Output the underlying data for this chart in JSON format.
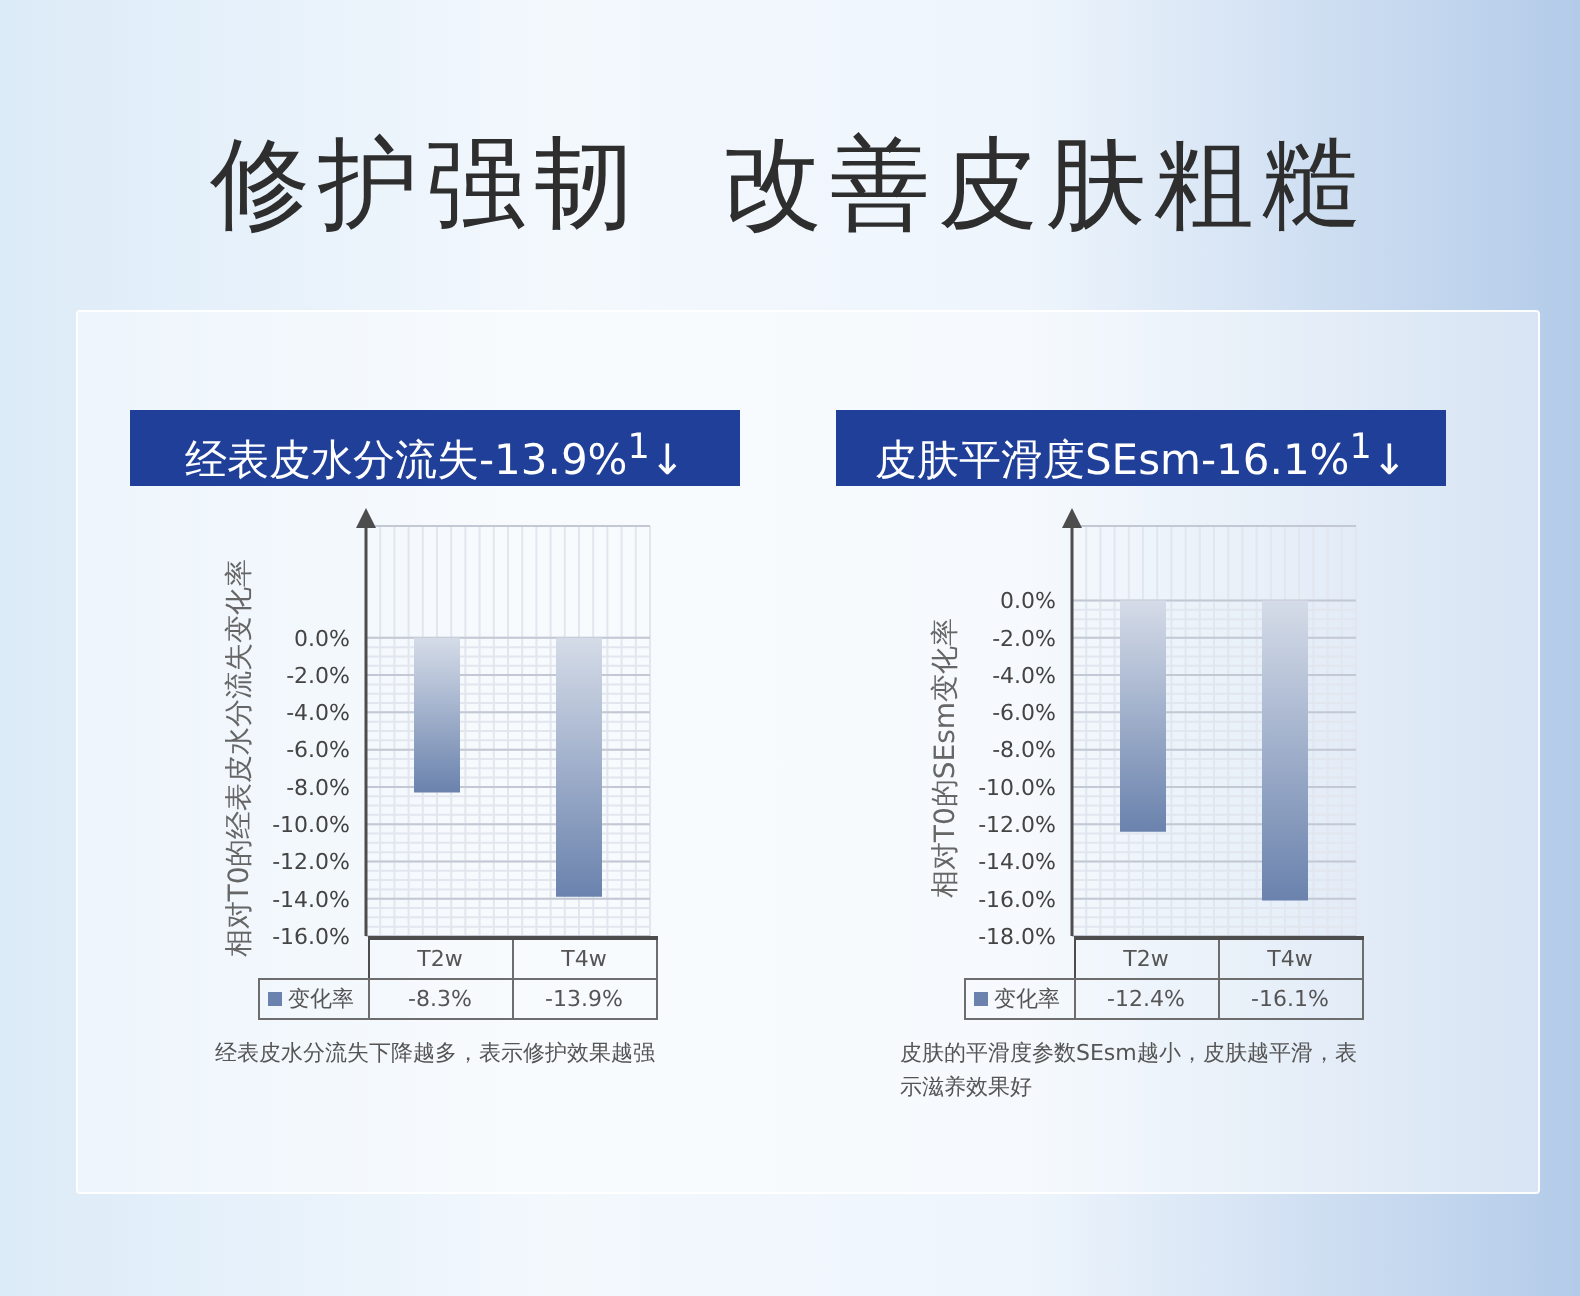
{
  "chart_data": [
    {
      "type": "other",
      "title": "修护强韧  改善皮肤粗糙"
    },
    {
      "type": "bar",
      "title": "经表皮水分流失-13.9%$^{1}$↓",
      "ylabel": "相对T0的经表皮水分流失变化率",
      "categories": [
        "T2w",
        "T4w"
      ],
      "series": [
        {
          "name": "变化率",
          "color": "#6a82ad",
          "values": [
            -8.3,
            -13.9
          ],
          "value_labels": [
            "-8.3%",
            "-13.9%"
          ]
        }
      ],
      "ylim": [
        -16,
        6
      ],
      "yticks": [
        {
          "value": 0,
          "label": "0.0%"
        },
        {
          "value": -2,
          "label": "-2.0%"
        },
        {
          "value": -4,
          "label": "-4.0%"
        },
        {
          "value": -6,
          "label": "-6.0%"
        },
        {
          "value": -8,
          "label": "-8.0%"
        },
        {
          "value": -10,
          "label": "-10.0%"
        },
        {
          "value": -12,
          "label": "-12.0%"
        },
        {
          "value": -14,
          "label": "-14.0%"
        },
        {
          "value": -16,
          "label": "-16.0%"
        }
      ],
      "grid": true,
      "legend": "bottom",
      "annotations": [
        "经表皮水分流失下降越多，表示修护效果越强"
      ]
    },
    {
      "type": "bar",
      "title": "皮肤平滑度SEsm-16.1%$^{1}$↓",
      "ylabel": "相对T0的SEsm变化率",
      "categories": [
        "T2w",
        "T4w"
      ],
      "series": [
        {
          "name": "变化率",
          "color": "#6a82ad",
          "values": [
            -12.4,
            -16.1
          ],
          "value_labels": [
            "-12.4%",
            "-16.1%"
          ]
        }
      ],
      "ylim": [
        -18,
        4
      ],
      "yticks": [
        {
          "value": 0,
          "label": "0.0%"
        },
        {
          "value": -2,
          "label": "-2.0%"
        },
        {
          "value": -4,
          "label": "-4.0%"
        },
        {
          "value": -6,
          "label": "-6.0%"
        },
        {
          "value": -8,
          "label": "-8.0%"
        },
        {
          "value": -10,
          "label": "-10.0%"
        },
        {
          "value": -12,
          "label": "-12.0%"
        },
        {
          "value": -14,
          "label": "-14.0%"
        },
        {
          "value": -16,
          "label": "-16.0%"
        },
        {
          "value": -18,
          "label": "-18.0%"
        }
      ],
      "grid": true,
      "legend": "bottom",
      "annotations": [
        "皮肤的平滑度参数SEsm越小，皮肤越平滑，表示滋养效果好"
      ]
    }
  ]
}
